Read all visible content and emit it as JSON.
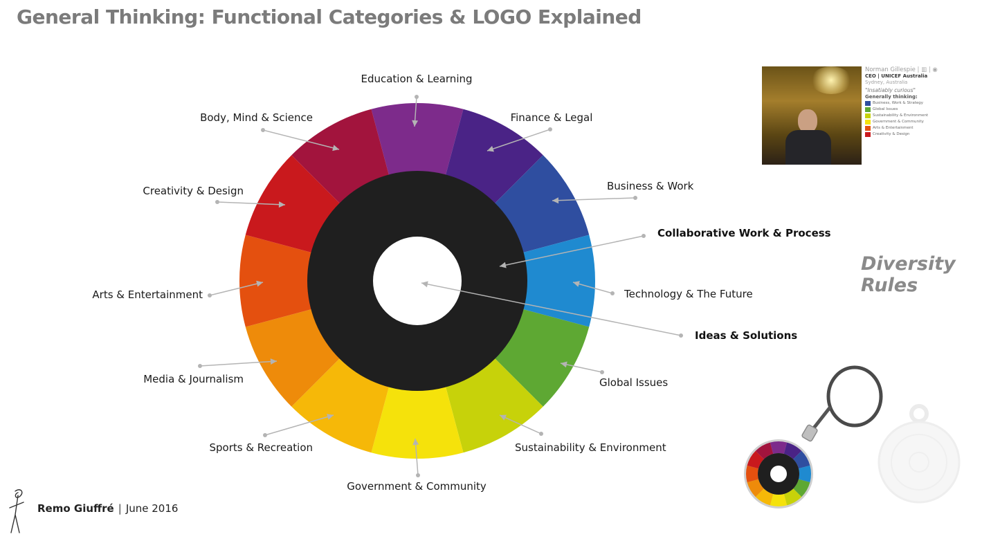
{
  "title": "General Thinking: Functional Categories & LOGO Explained",
  "segments": [
    {
      "label": "Education & Learning",
      "color": "#7d2b8b"
    },
    {
      "label": "Finance & Legal",
      "color": "#4a2386"
    },
    {
      "label": "Business & Work",
      "color": "#2f4ea0"
    },
    {
      "label": "Technology & The Future",
      "color": "#1f8ad0"
    },
    {
      "label": "Global Issues",
      "color": "#5ea833"
    },
    {
      "label": "Sustainability & Environment",
      "color": "#c7d20a"
    },
    {
      "label": "Government & Community",
      "color": "#f5e20b"
    },
    {
      "label": "Sports & Recreation",
      "color": "#f6b808"
    },
    {
      "label": "Media & Journalism",
      "color": "#ee8b0a"
    },
    {
      "label": "Arts & Entertainment",
      "color": "#e4500f"
    },
    {
      "label": "Creativity & Design",
      "color": "#c9191d"
    },
    {
      "label": "Body, Mind & Science",
      "color": "#a2143d"
    }
  ],
  "inner_ring": {
    "label": "Collaborative Work & Process",
    "color": "#1f1f1f"
  },
  "center": {
    "label": "Ideas & Solutions",
    "color": "#ffffff"
  },
  "diversity": "Diversity Rules",
  "profile": {
    "name": "Norman Gillespie",
    "icons": "| ▥ | ◉",
    "role": "CEO | UNICEF Australia",
    "location": "Sydney, Australia",
    "quote": "\"Insatiably curious\"",
    "heading": "Generally thinking:",
    "items": [
      {
        "label": "Business, Work & Strategy",
        "color": "#2f4ea0"
      },
      {
        "label": "Global Issues",
        "color": "#5ea833"
      },
      {
        "label": "Sustainability & Environment",
        "color": "#c7d20a"
      },
      {
        "label": "Government & Community",
        "color": "#f5e20b"
      },
      {
        "label": "Arts & Entertainment",
        "color": "#e4500f"
      },
      {
        "label": "Creativity & Design",
        "color": "#c9191d"
      }
    ]
  },
  "footer": {
    "author": "Remo Giuffré",
    "separator": "|",
    "date": "June 2016"
  }
}
